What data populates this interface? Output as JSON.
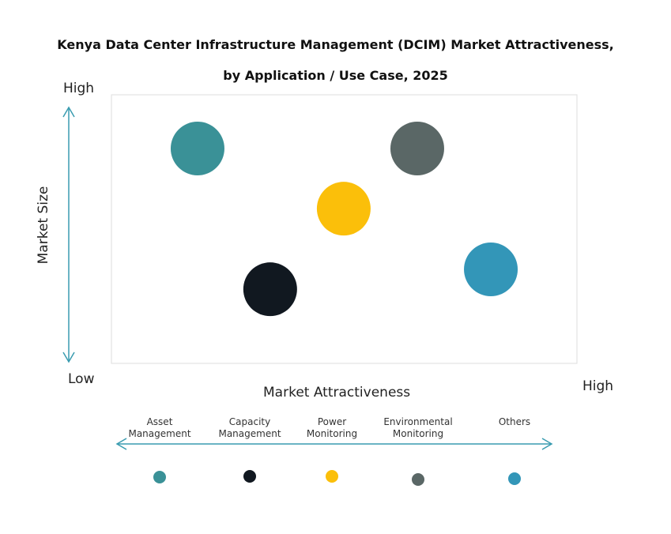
{
  "chart_data": {
    "type": "scatter",
    "title_line1": "Kenya Data Center Infrastructure Management (DCIM) Market Attractiveness,",
    "title_line2": "by Application / Use Case, 2025",
    "xlabel": "Market Attractiveness",
    "ylabel": "Market Size",
    "y_high": "High",
    "y_low": "Low",
    "x_high": "High",
    "xlim": [
      0,
      100
    ],
    "ylim": [
      0,
      100
    ],
    "grid": false,
    "legend_placement": "bottom",
    "series": [
      {
        "name": "Asset Management",
        "x": 18.5,
        "y": 80,
        "color": "#3a9197"
      },
      {
        "name": "Capacity Management",
        "x": 34.1,
        "y": 27.6,
        "color": "#111820"
      },
      {
        "name": "Power Monitoring",
        "x": 49.9,
        "y": 57.6,
        "color": "#fbbf0a"
      },
      {
        "name": "Environmental Monitoring",
        "x": 65.7,
        "y": 80,
        "color": "#5a6766"
      },
      {
        "name": "Others",
        "x": 81.5,
        "y": 35,
        "color": "#3396b8"
      }
    ]
  }
}
